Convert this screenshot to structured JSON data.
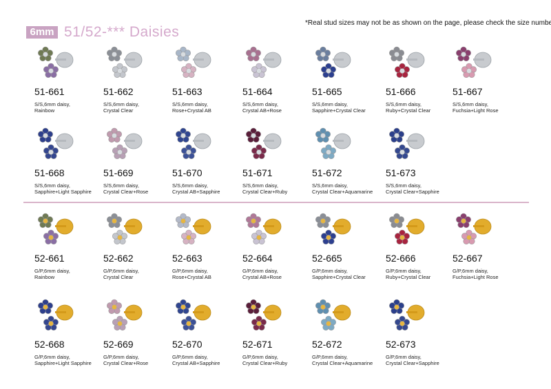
{
  "header": {
    "size_badge": "6mm",
    "title": "51/52-*** Daisies",
    "note": "*Real stud sizes may not be as shown on the page, please check the size number"
  },
  "colors": {
    "accent": "#c9a3c2",
    "title": "#d5a9cc",
    "divider": "#d9b3c9",
    "silver_post": "#c8cbcf",
    "gold_post": "#e2ac2c"
  },
  "items": [
    {
      "code": "51-661",
      "line1": "S/S,6mm daisy,",
      "line2": "Rainbow",
      "metal": "silver",
      "color": "#6f7a54",
      "color2": "#8a6ea4"
    },
    {
      "code": "51-662",
      "line1": "S/S,6mm daisy,",
      "line2": "Crystal Clear",
      "metal": "silver",
      "color": "#8b8f96",
      "color2": "#c3c6cc"
    },
    {
      "code": "51-663",
      "line1": "S/S,6mm daisy,",
      "line2": "Rose+Crystal AB",
      "metal": "silver",
      "color": "#a8b6c8",
      "color2": "#d6b2c2"
    },
    {
      "code": "51-664",
      "line1": "S/S,6mm daisy,",
      "line2": "Crystal AB+Rose",
      "metal": "silver",
      "color": "#a87090",
      "color2": "#c9c3d3"
    },
    {
      "code": "51-665",
      "line1": "S/S,6mm daisy,",
      "line2": "Sapphire+Crystal Clear",
      "metal": "silver",
      "color": "#6a7e9e",
      "color2": "#2c3f8f"
    },
    {
      "code": "51-666",
      "line1": "S/S,6mm daisy,",
      "line2": "Ruby+Crystal Clear",
      "metal": "silver",
      "color": "#8a8c92",
      "color2": "#a8243f"
    },
    {
      "code": "51-667",
      "line1": "S/S,6mm daisy,",
      "line2": "Fuchsia+Light Rose",
      "metal": "silver",
      "color": "#8a3f6e",
      "color2": "#d89ab0"
    },
    {
      "code": "51-668",
      "line1": "S/S,6mm daisy,",
      "line2": "Sapphire+Light Sapphire",
      "metal": "silver",
      "color": "#2d3f8c",
      "color2": "#34468f"
    },
    {
      "code": "51-669",
      "line1": "S/S,6mm daisy,",
      "line2": "Crystal Clear+Rose",
      "metal": "silver",
      "color": "#c09aae",
      "color2": "#b8a0b5"
    },
    {
      "code": "51-670",
      "line1": "S/S,6mm daisy,",
      "line2": "Crystal AB+Sapphire",
      "metal": "silver",
      "color": "#2f4590",
      "color2": "#3c5197"
    },
    {
      "code": "51-671",
      "line1": "S/S,6mm daisy,",
      "line2": "Crystal Clear+Ruby",
      "metal": "silver",
      "color": "#5a1e3a",
      "color2": "#7a2a4a"
    },
    {
      "code": "51-672",
      "line1": "S/S,6mm daisy,",
      "line2": "Crystal Clear+Aquamarine",
      "metal": "silver",
      "color": "#5f8fb0",
      "color2": "#7eaac4"
    },
    {
      "code": "51-673",
      "line1": "S/S,6mm daisy,",
      "line2": "Crystal Clear+Sapphire",
      "metal": "silver",
      "color": "#2b3f8b",
      "color2": "#34488f"
    },
    {
      "code": "52-661",
      "line1": "G/P,6mm daisy,",
      "line2": "Rainbow",
      "metal": "gold",
      "color": "#6f7a54",
      "color2": "#8a6ea4"
    },
    {
      "code": "52-662",
      "line1": "G/P,6mm daisy,",
      "line2": "Crystal Clear",
      "metal": "gold",
      "color": "#8b8f96",
      "color2": "#c3c6cc"
    },
    {
      "code": "52-663",
      "line1": "G/P,6mm daisy,",
      "line2": "Rose+Crystal AB",
      "metal": "gold",
      "color": "#b3b9c8",
      "color2": "#d6b2c2"
    },
    {
      "code": "52-664",
      "line1": "G/P,6mm daisy,",
      "line2": "Crystal AB+Rose",
      "metal": "gold",
      "color": "#b07898",
      "color2": "#c9c3d3"
    },
    {
      "code": "52-665",
      "line1": "G/P,6mm daisy,",
      "line2": "Sapphire+Crystal Clear",
      "metal": "gold",
      "color": "#8a8e96",
      "color2": "#2c3f8f"
    },
    {
      "code": "52-666",
      "line1": "G/P,6mm daisy,",
      "line2": "Ruby+Crystal Clear",
      "metal": "gold",
      "color": "#8a8c92",
      "color2": "#a8243f"
    },
    {
      "code": "52-667",
      "line1": "G/P,6mm daisy,",
      "line2": "Fuchsia+Light Rose",
      "metal": "gold",
      "color": "#8a3f6e",
      "color2": "#d89ab0"
    },
    {
      "code": "52-668",
      "line1": "G/P,6mm daisy,",
      "line2": "Sapphire+Light Sapphire",
      "metal": "gold",
      "color": "#2d3f8c",
      "color2": "#34468f"
    },
    {
      "code": "52-669",
      "line1": "G/P,6mm daisy,",
      "line2": "Crystal Clear+Rose",
      "metal": "gold",
      "color": "#c09aae",
      "color2": "#b8a0b5"
    },
    {
      "code": "52-670",
      "line1": "G/P,6mm daisy,",
      "line2": "Crystal AB+Sapphire",
      "metal": "gold",
      "color": "#2f4590",
      "color2": "#3c5197"
    },
    {
      "code": "52-671",
      "line1": "G/P,6mm daisy,",
      "line2": "Crystal Clear+Ruby",
      "metal": "gold",
      "color": "#5a1e3a",
      "color2": "#7a2a4a"
    },
    {
      "code": "52-672",
      "line1": "G/P,6mm daisy,",
      "line2": "Crystal Clear+Aquamarine",
      "metal": "gold",
      "color": "#5f8fb0",
      "color2": "#7eaac4"
    },
    {
      "code": "52-673",
      "line1": "G/P,6mm daisy,",
      "line2": "Crystal Clear+Sapphire",
      "metal": "gold",
      "color": "#2b3f8b",
      "color2": "#34488f"
    }
  ]
}
